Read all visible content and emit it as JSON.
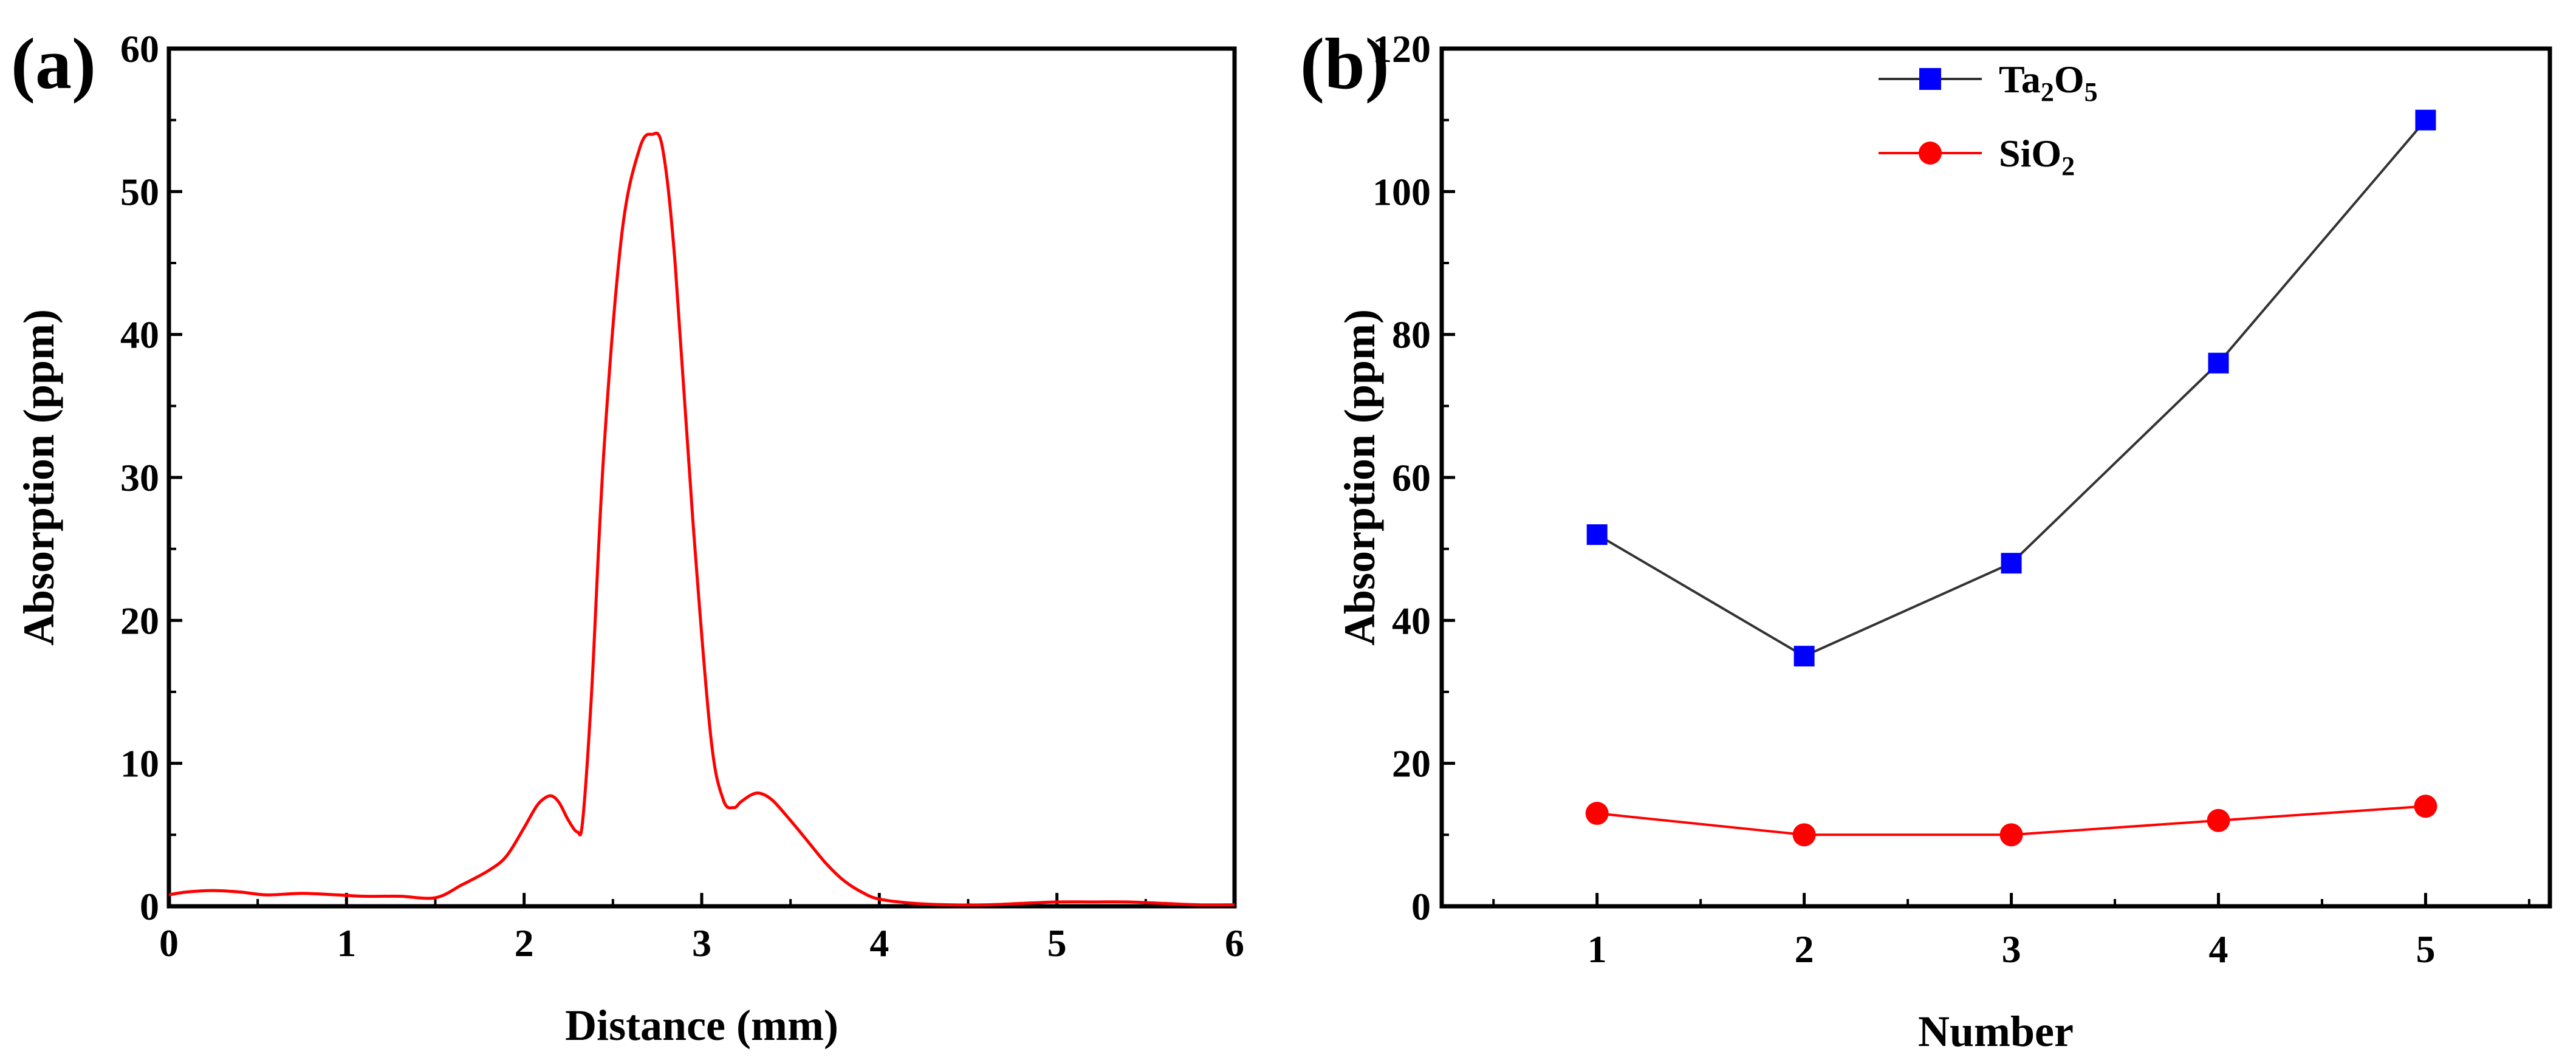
{
  "chart_data": [
    {
      "panel": "(a)",
      "type": "line",
      "xlabel": "Distance (mm)",
      "ylabel": "Absorption (ppm)",
      "xlim": [
        0,
        6
      ],
      "ylim": [
        0,
        60
      ],
      "xticks": [
        "0",
        "1",
        "2",
        "3",
        "4",
        "5",
        "6"
      ],
      "yticks": [
        "0",
        "10",
        "20",
        "30",
        "40",
        "50",
        "60"
      ],
      "color": "#ff0000",
      "x": [
        0,
        0.1,
        0.25,
        0.4,
        0.55,
        0.75,
        0.95,
        1.1,
        1.3,
        1.5,
        1.65,
        1.8,
        1.9,
        2.0,
        2.07,
        2.12,
        2.16,
        2.2,
        2.25,
        2.3,
        2.33,
        2.38,
        2.45,
        2.55,
        2.65,
        2.72,
        2.78,
        2.85,
        2.95,
        3.05,
        3.12,
        3.18,
        3.22,
        3.28,
        3.33,
        3.4,
        3.5,
        3.6,
        3.7,
        3.8,
        3.9,
        4.0,
        4.2,
        4.4,
        4.6,
        4.8,
        5.0,
        5.2,
        5.4,
        5.6,
        5.8,
        6.0
      ],
      "y": [
        0.8,
        1.0,
        1.1,
        1.0,
        0.8,
        0.9,
        0.8,
        0.7,
        0.7,
        0.6,
        1.5,
        2.5,
        3.5,
        5.5,
        7.0,
        7.6,
        7.7,
        7.2,
        6.0,
        5.2,
        6.0,
        15.0,
        32.0,
        47.0,
        53.0,
        54.0,
        53.0,
        45.0,
        27.0,
        12.0,
        7.5,
        6.9,
        7.3,
        7.8,
        7.9,
        7.4,
        6.0,
        4.5,
        3.0,
        1.8,
        1.0,
        0.5,
        0.2,
        0.1,
        0.1,
        0.2,
        0.3,
        0.3,
        0.3,
        0.2,
        0.1,
        0.1
      ]
    },
    {
      "panel": "(b)",
      "type": "line",
      "xlabel": "Number",
      "ylabel": "Absorption (ppm)",
      "xlim": [
        0.25,
        5.6
      ],
      "ylim": [
        0,
        120
      ],
      "xticks": [
        "1",
        "2",
        "3",
        "4",
        "5"
      ],
      "yticks": [
        "0",
        "20",
        "40",
        "60",
        "80",
        "100",
        "120"
      ],
      "categories": [
        1,
        2,
        3,
        4,
        5
      ],
      "legend_position": "top-left",
      "series": [
        {
          "name_base": "Ta",
          "sub1": "2",
          "mid": "O",
          "sub2": "5",
          "values": [
            52,
            35,
            48,
            76,
            110
          ],
          "marker": "square",
          "marker_color": "#0000ff",
          "line_color": "#333333"
        },
        {
          "name_base": "SiO",
          "sub1": "2",
          "mid": "",
          "sub2": "",
          "values": [
            13,
            10,
            10,
            12,
            14
          ],
          "marker": "circle",
          "marker_color": "#ff0000",
          "line_color": "#ff0000"
        }
      ]
    }
  ]
}
